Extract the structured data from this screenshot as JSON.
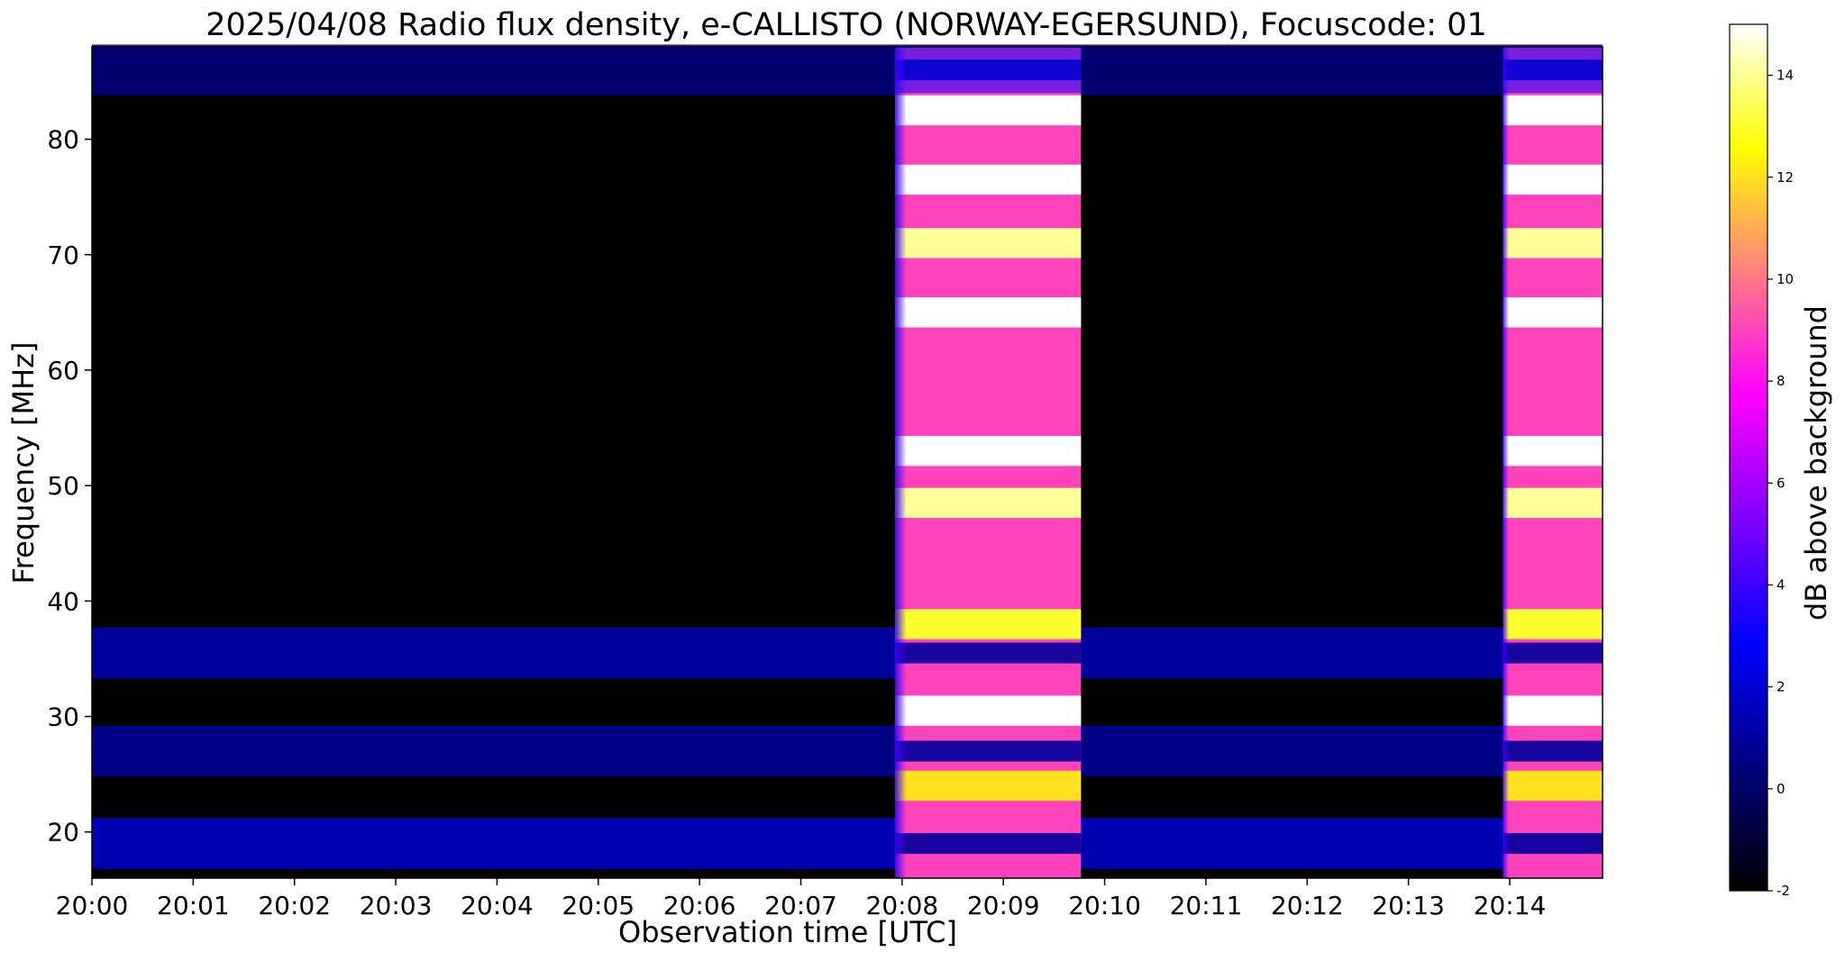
{
  "chart_data": {
    "type": "heatmap",
    "title": "2025/04/08  Radio flux density, e-CALLISTO (NORWAY-EGERSUND), Focuscode: 01",
    "xlabel": "Observation time [UTC]",
    "ylabel": "Frequency [MHz]",
    "x_ticks": [
      "20:00",
      "20:01",
      "20:02",
      "20:03",
      "20:04",
      "20:05",
      "20:06",
      "20:07",
      "20:08",
      "20:09",
      "20:10",
      "20:11",
      "20:12",
      "20:13",
      "20:14"
    ],
    "xlim": [
      "20:00:00",
      "20:14:55"
    ],
    "y_ticks": [
      20,
      30,
      40,
      50,
      60,
      70,
      80
    ],
    "ylim": [
      16,
      88
    ],
    "colorbar": {
      "label": "dB above background",
      "range": [
        -2,
        15
      ],
      "ticks": [
        -2,
        0,
        2,
        4,
        6,
        8,
        10,
        12,
        14
      ],
      "colormap": "gnuplot2",
      "stops": [
        "#000000",
        "#00007f",
        "#0000ff",
        "#7f00ff",
        "#ff00ff",
        "#ff7f7f",
        "#ffff00",
        "#ffffff"
      ]
    },
    "background_dB": -2,
    "bursts": [
      {
        "start": "20:07:56",
        "end": "20:09:46",
        "level_dB": 9
      },
      {
        "start": "20:13:56",
        "end": "20:14:55",
        "level_dB": 9
      }
    ],
    "bright_bands_MHz": [
      {
        "center": 82.5,
        "level_dB": 15
      },
      {
        "center": 76.5,
        "level_dB": 15
      },
      {
        "center": 71,
        "level_dB": 14
      },
      {
        "center": 65,
        "level_dB": 15
      },
      {
        "center": 53,
        "level_dB": 15
      },
      {
        "center": 48.5,
        "level_dB": 14
      },
      {
        "center": 38,
        "level_dB": 13
      },
      {
        "center": 30.5,
        "level_dB": 15
      },
      {
        "center": 24,
        "level_dB": 12
      }
    ],
    "background_bands_MHz": [
      {
        "center": 86,
        "level_dB": 0.5
      },
      {
        "center": 35.5,
        "level_dB": 1.5
      },
      {
        "center": 27,
        "level_dB": 1
      },
      {
        "center": 19,
        "level_dB": 2
      }
    ]
  }
}
